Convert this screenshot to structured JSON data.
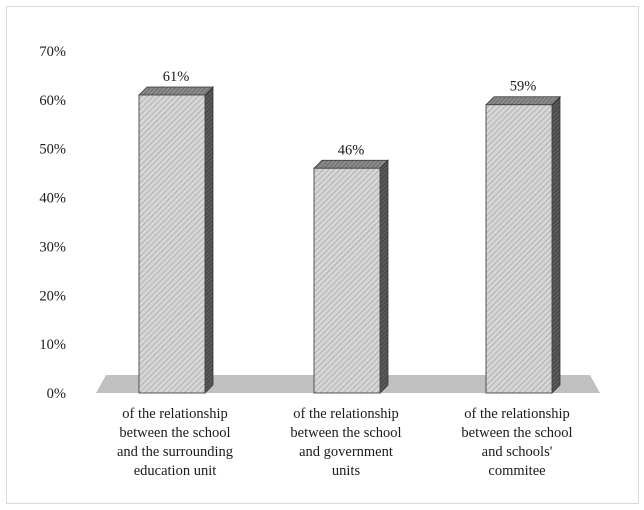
{
  "chart_data": {
    "type": "bar",
    "categories": [
      [
        "of the relationship",
        "between the school",
        "and the surrounding",
        "education unit"
      ],
      [
        "of the relationship",
        "between the school",
        "and government",
        "units"
      ],
      [
        "of the relationship",
        "between the school",
        "and schools'",
        "commitee"
      ]
    ],
    "values": [
      0.61,
      0.46,
      0.59
    ],
    "data_labels": [
      "61%",
      "46%",
      "59%"
    ],
    "y_ticks": [
      "0%",
      "10%",
      "20%",
      "30%",
      "40%",
      "50%",
      "60%",
      "70%"
    ],
    "ylim": [
      0,
      0.7
    ],
    "grid": false,
    "legend": "none",
    "style": "3d-hatched",
    "colors": {
      "bar_face": "#d6d6d6",
      "bar_hatch": "#9a9a9a",
      "bar_side": "#555555",
      "bar_top": "#7a7a7a",
      "floor": "#c0c0c0"
    }
  }
}
